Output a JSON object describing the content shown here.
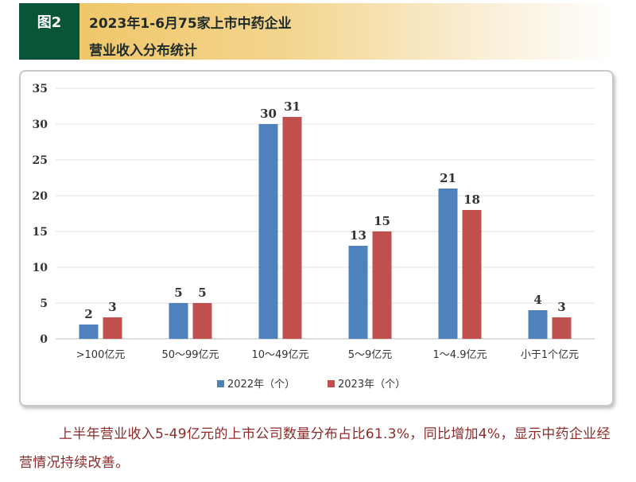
{
  "figure": {
    "tag": "图2",
    "title_line1": "2023年1-6月75家上市中药企业",
    "title_line2": "营业收入分布统计"
  },
  "colors": {
    "header_dark": "#0a5538",
    "header_gold": "#efc35f",
    "series_2022": "#4f81bd",
    "series_2023": "#c0504d",
    "body_text": "#8e2a2a"
  },
  "chart_data": {
    "type": "bar",
    "categories": [
      ">100亿元",
      "50～99亿元",
      "10～49亿元",
      "5～9亿元",
      "1～4.9亿元",
      "小于1个亿元"
    ],
    "series": [
      {
        "name": "2022年（个）",
        "values": [
          2,
          5,
          30,
          13,
          21,
          4
        ],
        "color": "#4f81bd"
      },
      {
        "name": "2023年（个）",
        "values": [
          3,
          5,
          31,
          15,
          18,
          3
        ],
        "color": "#c0504d"
      }
    ],
    "ylim": [
      0,
      35
    ],
    "yticks": [
      0,
      5,
      10,
      15,
      20,
      25,
      30,
      35
    ],
    "grid": true,
    "legend": "bottom",
    "data_labels": true
  },
  "paragraph": "上半年营业收入5-49亿元的上市公司数量分布占比61.3%，同比增加4%，显示中药企业经营情况持续改善。"
}
